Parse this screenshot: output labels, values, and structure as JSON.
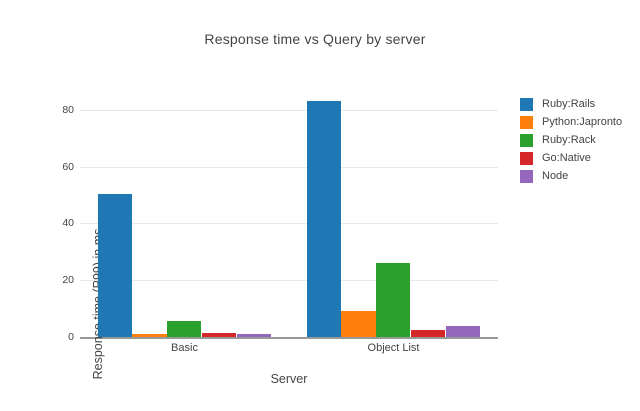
{
  "chart_data": {
    "type": "bar",
    "title": "Response time vs Query by server",
    "xlabel": "Server",
    "ylabel": "Response time (P99) in ms",
    "categories": [
      "Basic",
      "Object List"
    ],
    "series": [
      {
        "name": "Ruby:Rails",
        "color": "#1f77b4",
        "values": [
          50.5,
          83
        ]
      },
      {
        "name": "Python:Japronto",
        "color": "#ff7f0e",
        "values": [
          0.9,
          9
        ]
      },
      {
        "name": "Ruby:Rack",
        "color": "#2ca02c",
        "values": [
          5.5,
          26
        ]
      },
      {
        "name": "Go:Native",
        "color": "#d62728",
        "values": [
          1.3,
          2.5
        ]
      },
      {
        "name": "Node",
        "color": "#9467bd",
        "values": [
          1.2,
          3.8
        ]
      }
    ],
    "yticks": [
      0,
      20,
      40,
      60,
      80
    ],
    "ylim": [
      0,
      87
    ],
    "grid": true,
    "legend_position": "right",
    "colors": {
      "text": "#444444",
      "gridline": "#e8e8e8",
      "axis_line": "#999999",
      "background": "#ffffff"
    }
  }
}
